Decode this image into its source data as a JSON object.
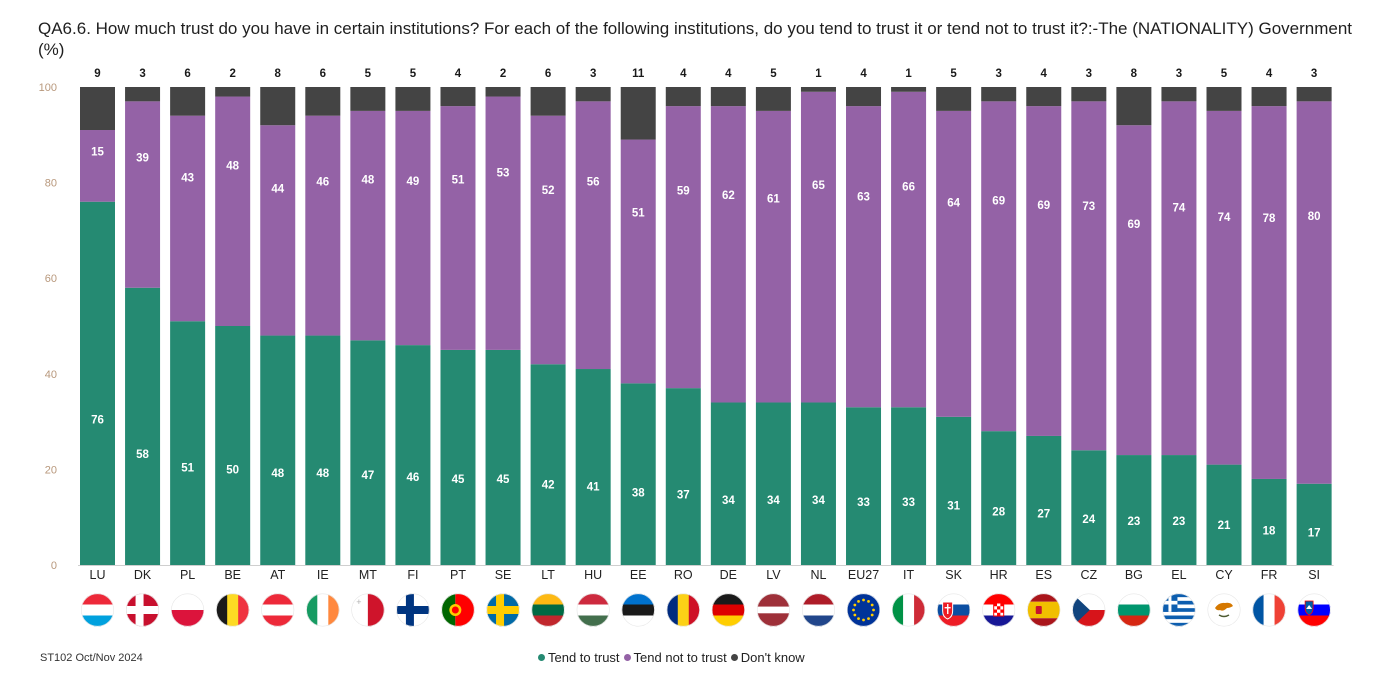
{
  "title": "QA6.6. How much trust do you have in certain institutions? For each of the following institutions, do you tend to trust it or tend not to trust it?:-The (NATIONALITY) Government (%)",
  "source": "ST102 Oct/Nov 2024",
  "colors": {
    "trust": "#258a72",
    "not_trust": "#9462a6",
    "dont_know": "#444444",
    "axis_tick": "#b8987c"
  },
  "chart_data": {
    "type": "bar",
    "stacked": true,
    "ylim": [
      0,
      100
    ],
    "yticks": [
      0,
      20,
      40,
      60,
      80,
      100
    ],
    "categories": [
      "LU",
      "DK",
      "PL",
      "BE",
      "AT",
      "IE",
      "MT",
      "FI",
      "PT",
      "SE",
      "LT",
      "HU",
      "EE",
      "RO",
      "DE",
      "LV",
      "NL",
      "EU27",
      "IT",
      "SK",
      "HR",
      "ES",
      "CZ",
      "BG",
      "EL",
      "CY",
      "FR",
      "SI"
    ],
    "series": [
      {
        "name": "Tend to trust",
        "values": [
          76,
          58,
          51,
          50,
          48,
          48,
          47,
          46,
          45,
          45,
          42,
          41,
          38,
          37,
          34,
          34,
          34,
          33,
          33,
          31,
          28,
          27,
          24,
          23,
          23,
          21,
          18,
          17
        ]
      },
      {
        "name": "Tend not to trust",
        "values": [
          15,
          39,
          43,
          48,
          44,
          46,
          48,
          49,
          51,
          53,
          52,
          56,
          51,
          59,
          62,
          61,
          65,
          63,
          66,
          64,
          69,
          69,
          73,
          69,
          74,
          74,
          78,
          80
        ]
      },
      {
        "name": "Don't know",
        "values": [
          9,
          3,
          6,
          2,
          8,
          6,
          5,
          5,
          4,
          2,
          6,
          3,
          11,
          4,
          4,
          5,
          1,
          4,
          1,
          5,
          3,
          4,
          3,
          8,
          3,
          5,
          4,
          3
        ]
      }
    ],
    "legend_position": "bottom-center"
  },
  "flag_icons": [
    "luxembourg-flag-icon",
    "denmark-flag-icon",
    "poland-flag-icon",
    "belgium-flag-icon",
    "austria-flag-icon",
    "ireland-flag-icon",
    "malta-flag-icon",
    "finland-flag-icon",
    "portugal-flag-icon",
    "sweden-flag-icon",
    "lithuania-flag-icon",
    "hungary-flag-icon",
    "estonia-flag-icon",
    "romania-flag-icon",
    "germany-flag-icon",
    "latvia-flag-icon",
    "netherlands-flag-icon",
    "eu-flag-icon",
    "italy-flag-icon",
    "slovakia-flag-icon",
    "croatia-flag-icon",
    "spain-flag-icon",
    "czechia-flag-icon",
    "bulgaria-flag-icon",
    "greece-flag-icon",
    "cyprus-flag-icon",
    "france-flag-icon",
    "slovenia-flag-icon"
  ]
}
